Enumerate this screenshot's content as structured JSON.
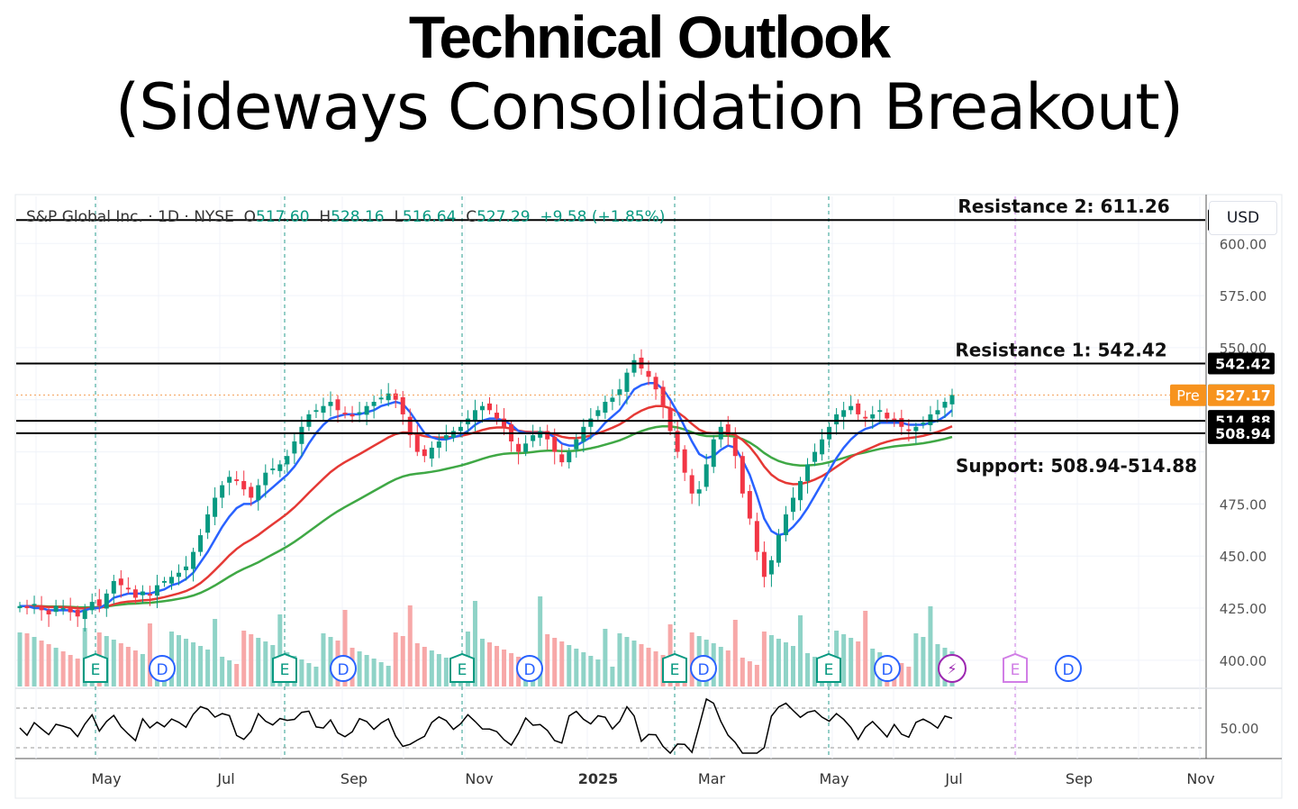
{
  "title": "Technical Outlook",
  "subtitle": "(Sideways Consolidation Breakout)",
  "legend": {
    "symbol": "S&P Global Inc. · 1D · NYSE",
    "o_label": "O",
    "open": "517.60",
    "h_label": "H",
    "high": "528.16",
    "l_label": "L",
    "low": "516.64",
    "c_label": "C",
    "close": "527.29",
    "change": "+9.58 (+1.85%)"
  },
  "currency_button": "USD",
  "chart_data": {
    "type": "candlestick",
    "y_range": [
      390,
      620
    ],
    "y_ticks": [
      "600.00",
      "575.00",
      "550.00",
      "475.00",
      "450.00",
      "425.00",
      "400.00"
    ],
    "x_ticks": [
      "May",
      "Jul",
      "Sep",
      "Nov",
      "2025",
      "Mar",
      "May",
      "Jul",
      "Sep",
      "Nov"
    ],
    "levels": [
      {
        "label": "Resistance 2: 611.26",
        "value": 611.26,
        "tag": "611.26"
      },
      {
        "label": "Resistance 1: 542.42",
        "value": 542.42,
        "tag": "542.42"
      },
      {
        "label": "Support: 508.94-514.88",
        "value": 514.88,
        "tag": "514.88"
      },
      {
        "label": "",
        "value": 508.94,
        "tag": "508.94"
      }
    ],
    "last_price": {
      "value": 527.29,
      "tag": "527.29"
    },
    "premarket": {
      "label": "Pre",
      "value": 527.17,
      "tag": "527.17"
    },
    "closes": [
      426,
      425,
      427,
      424,
      422,
      426,
      425,
      423,
      421,
      424,
      428,
      426,
      432,
      438,
      436,
      434,
      430,
      433,
      431,
      436,
      438,
      440,
      442,
      445,
      452,
      460,
      470,
      478,
      484,
      488,
      486,
      482,
      478,
      484,
      490,
      492,
      494,
      498,
      505,
      512,
      518,
      520,
      522,
      524,
      520,
      518,
      517,
      519,
      522,
      524,
      526,
      528,
      525,
      518,
      508,
      500,
      498,
      502,
      505,
      508,
      510,
      512,
      516,
      520,
      522,
      520,
      516,
      512,
      505,
      500,
      504,
      508,
      510,
      506,
      500,
      495,
      500,
      506,
      512,
      516,
      520,
      524,
      526,
      530,
      538,
      544,
      540,
      536,
      530,
      522,
      510,
      500,
      490,
      480,
      482,
      494,
      506,
      512,
      508,
      498,
      480,
      468,
      452,
      440,
      448,
      460,
      470,
      478,
      486,
      494,
      500,
      506,
      512,
      518,
      520,
      522,
      518,
      516,
      518,
      520,
      516,
      515,
      512,
      510,
      512,
      514,
      518,
      520,
      524,
      527.29
    ],
    "ema_fast": [
      426,
      426,
      425,
      425,
      424,
      424,
      424,
      424,
      423,
      424,
      425,
      425,
      427,
      430,
      431,
      432,
      432,
      432,
      432,
      433,
      434,
      436,
      437,
      439,
      442,
      447,
      452,
      458,
      464,
      469,
      473,
      475,
      475,
      477,
      480,
      483,
      486,
      489,
      493,
      498,
      504,
      509,
      513,
      516,
      517,
      518,
      518,
      518,
      519,
      520,
      522,
      523,
      524,
      523,
      519,
      514,
      509,
      507,
      506,
      506,
      507,
      508,
      510,
      513,
      515,
      516,
      516,
      515,
      513,
      510,
      509,
      509,
      509,
      509,
      507,
      504,
      503,
      503,
      505,
      507,
      510,
      514,
      517,
      520,
      525,
      530,
      532,
      533,
      533,
      530,
      525,
      519,
      512,
      505,
      499,
      497,
      498,
      501,
      503,
      502,
      496,
      489,
      479,
      468,
      462,
      460,
      461,
      464,
      468,
      473,
      479,
      485,
      491,
      497,
      502,
      506,
      509,
      511,
      512,
      514,
      514,
      514,
      514,
      513,
      513,
      513,
      514,
      515,
      517,
      520
    ]
  }
}
